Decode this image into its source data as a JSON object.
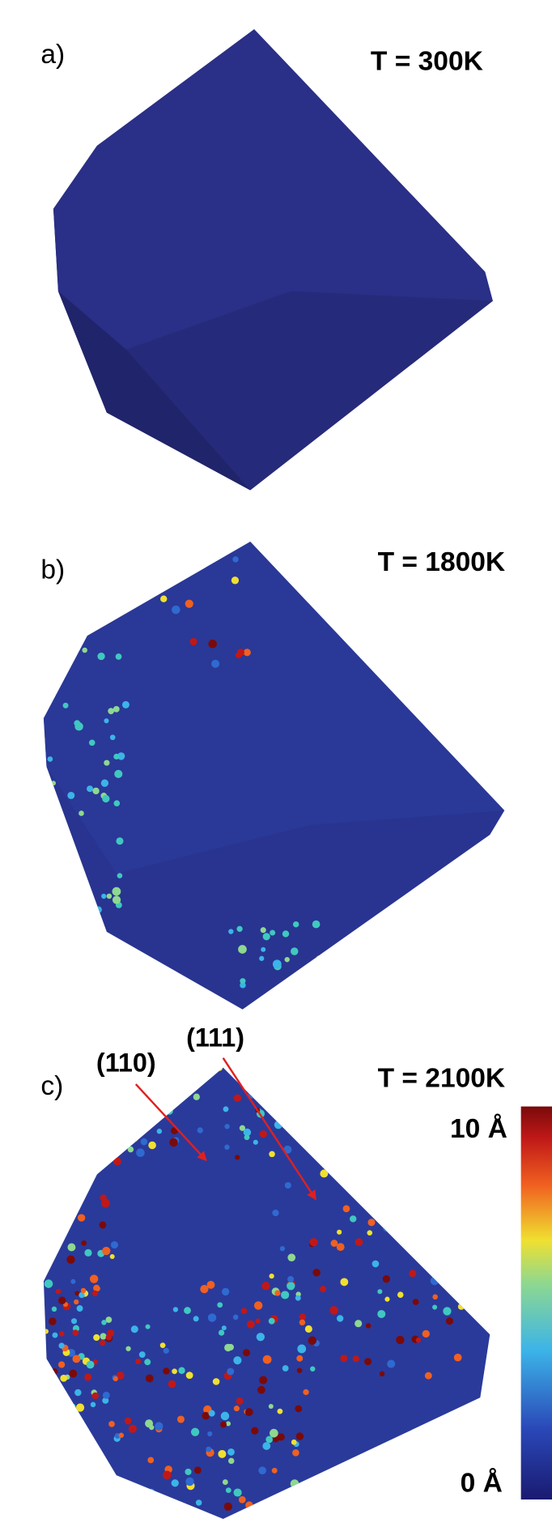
{
  "panels": [
    {
      "label": "a)",
      "temperature": "T = 300K"
    },
    {
      "label": "b)",
      "temperature": "T = 1800K"
    },
    {
      "label": "c)",
      "temperature": "T = 2100K"
    }
  ],
  "annotations": [
    "(110)",
    "(111)"
  ],
  "colorbar": {
    "top_label": "10 Å",
    "bottom_label": "0 Å"
  }
}
